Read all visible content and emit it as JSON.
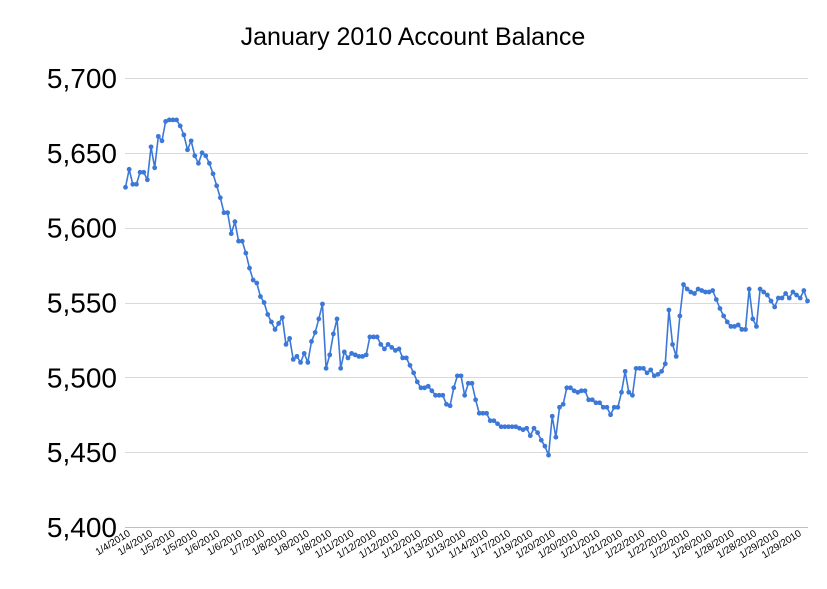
{
  "chart_data": {
    "type": "line",
    "title": "January 2010 Account Balance",
    "xlabel": "",
    "ylabel": "",
    "ylim": [
      5400,
      5700
    ],
    "y_ticks": [
      5400,
      5450,
      5500,
      5550,
      5600,
      5650,
      5700
    ],
    "y_tick_labels": [
      "5,400",
      "5,450",
      "5,500",
      "5,550",
      "5,600",
      "5,650",
      "5,700"
    ],
    "grid": true,
    "legend": "none",
    "line_color": "#3c78d8",
    "x_tick_labels": [
      "1/4/2010",
      "1/4/2010",
      "1/5/2010",
      "1/5/2010",
      "1/6/2010",
      "1/6/2010",
      "1/7/2010",
      "1/8/2010",
      "1/8/2010",
      "1/8/2010",
      "1/11/2010",
      "1/12/2010",
      "1/12/2010",
      "1/12/2010",
      "1/13/2010",
      "1/13/2010",
      "1/14/2010",
      "1/17/2010",
      "1/19/2010",
      "1/20/2010",
      "1/20/2010",
      "1/21/2010",
      "1/21/2010",
      "1/22/2010",
      "1/22/2010",
      "1/22/2010",
      "1/26/2010",
      "1/28/2010",
      "1/28/2010",
      "1/29/2010",
      "1/29/2010"
    ],
    "values": [
      5627,
      5639,
      5629,
      5629,
      5637,
      5637,
      5632,
      5654,
      5640,
      5661,
      5658,
      5671,
      5672,
      5672,
      5672,
      5668,
      5662,
      5652,
      5658,
      5648,
      5643,
      5650,
      5648,
      5643,
      5636,
      5628,
      5620,
      5610,
      5610,
      5596,
      5604,
      5591,
      5591,
      5583,
      5573,
      5565,
      5563,
      5554,
      5550,
      5542,
      5537,
      5532,
      5536,
      5540,
      5522,
      5526,
      5512,
      5514,
      5510,
      5516,
      5510,
      5524,
      5530,
      5539,
      5549,
      5506,
      5515,
      5529,
      5539,
      5506,
      5517,
      5513,
      5516,
      5515,
      5514,
      5514,
      5515,
      5527,
      5527,
      5527,
      5522,
      5519,
      5522,
      5520,
      5518,
      5519,
      5513,
      5513,
      5508,
      5503,
      5497,
      5493,
      5493,
      5494,
      5491,
      5488,
      5488,
      5488,
      5482,
      5481,
      5493,
      5501,
      5501,
      5488,
      5496,
      5496,
      5485,
      5476,
      5476,
      5476,
      5471,
      5471,
      5469,
      5467,
      5467,
      5467,
      5467,
      5467,
      5466,
      5465,
      5466,
      5461,
      5466,
      5463,
      5458,
      5454,
      5448,
      5474,
      5460,
      5480,
      5482,
      5493,
      5493,
      5491,
      5490,
      5491,
      5491,
      5485,
      5485,
      5483,
      5483,
      5480,
      5480,
      5475,
      5480,
      5480,
      5490,
      5504,
      5490,
      5488,
      5506,
      5506,
      5506,
      5503,
      5505,
      5501,
      5502,
      5504,
      5509,
      5545,
      5522,
      5514,
      5541,
      5562,
      5559,
      5557,
      5556,
      5559,
      5558,
      5557,
      5557,
      5558,
      5552,
      5546,
      5541,
      5537,
      5534,
      5534,
      5535,
      5532,
      5532,
      5559,
      5539,
      5534,
      5559,
      5557,
      5555,
      5551,
      5547,
      5553,
      5553,
      5556,
      5553,
      5557,
      5555,
      5553,
      5558,
      5551
    ]
  }
}
